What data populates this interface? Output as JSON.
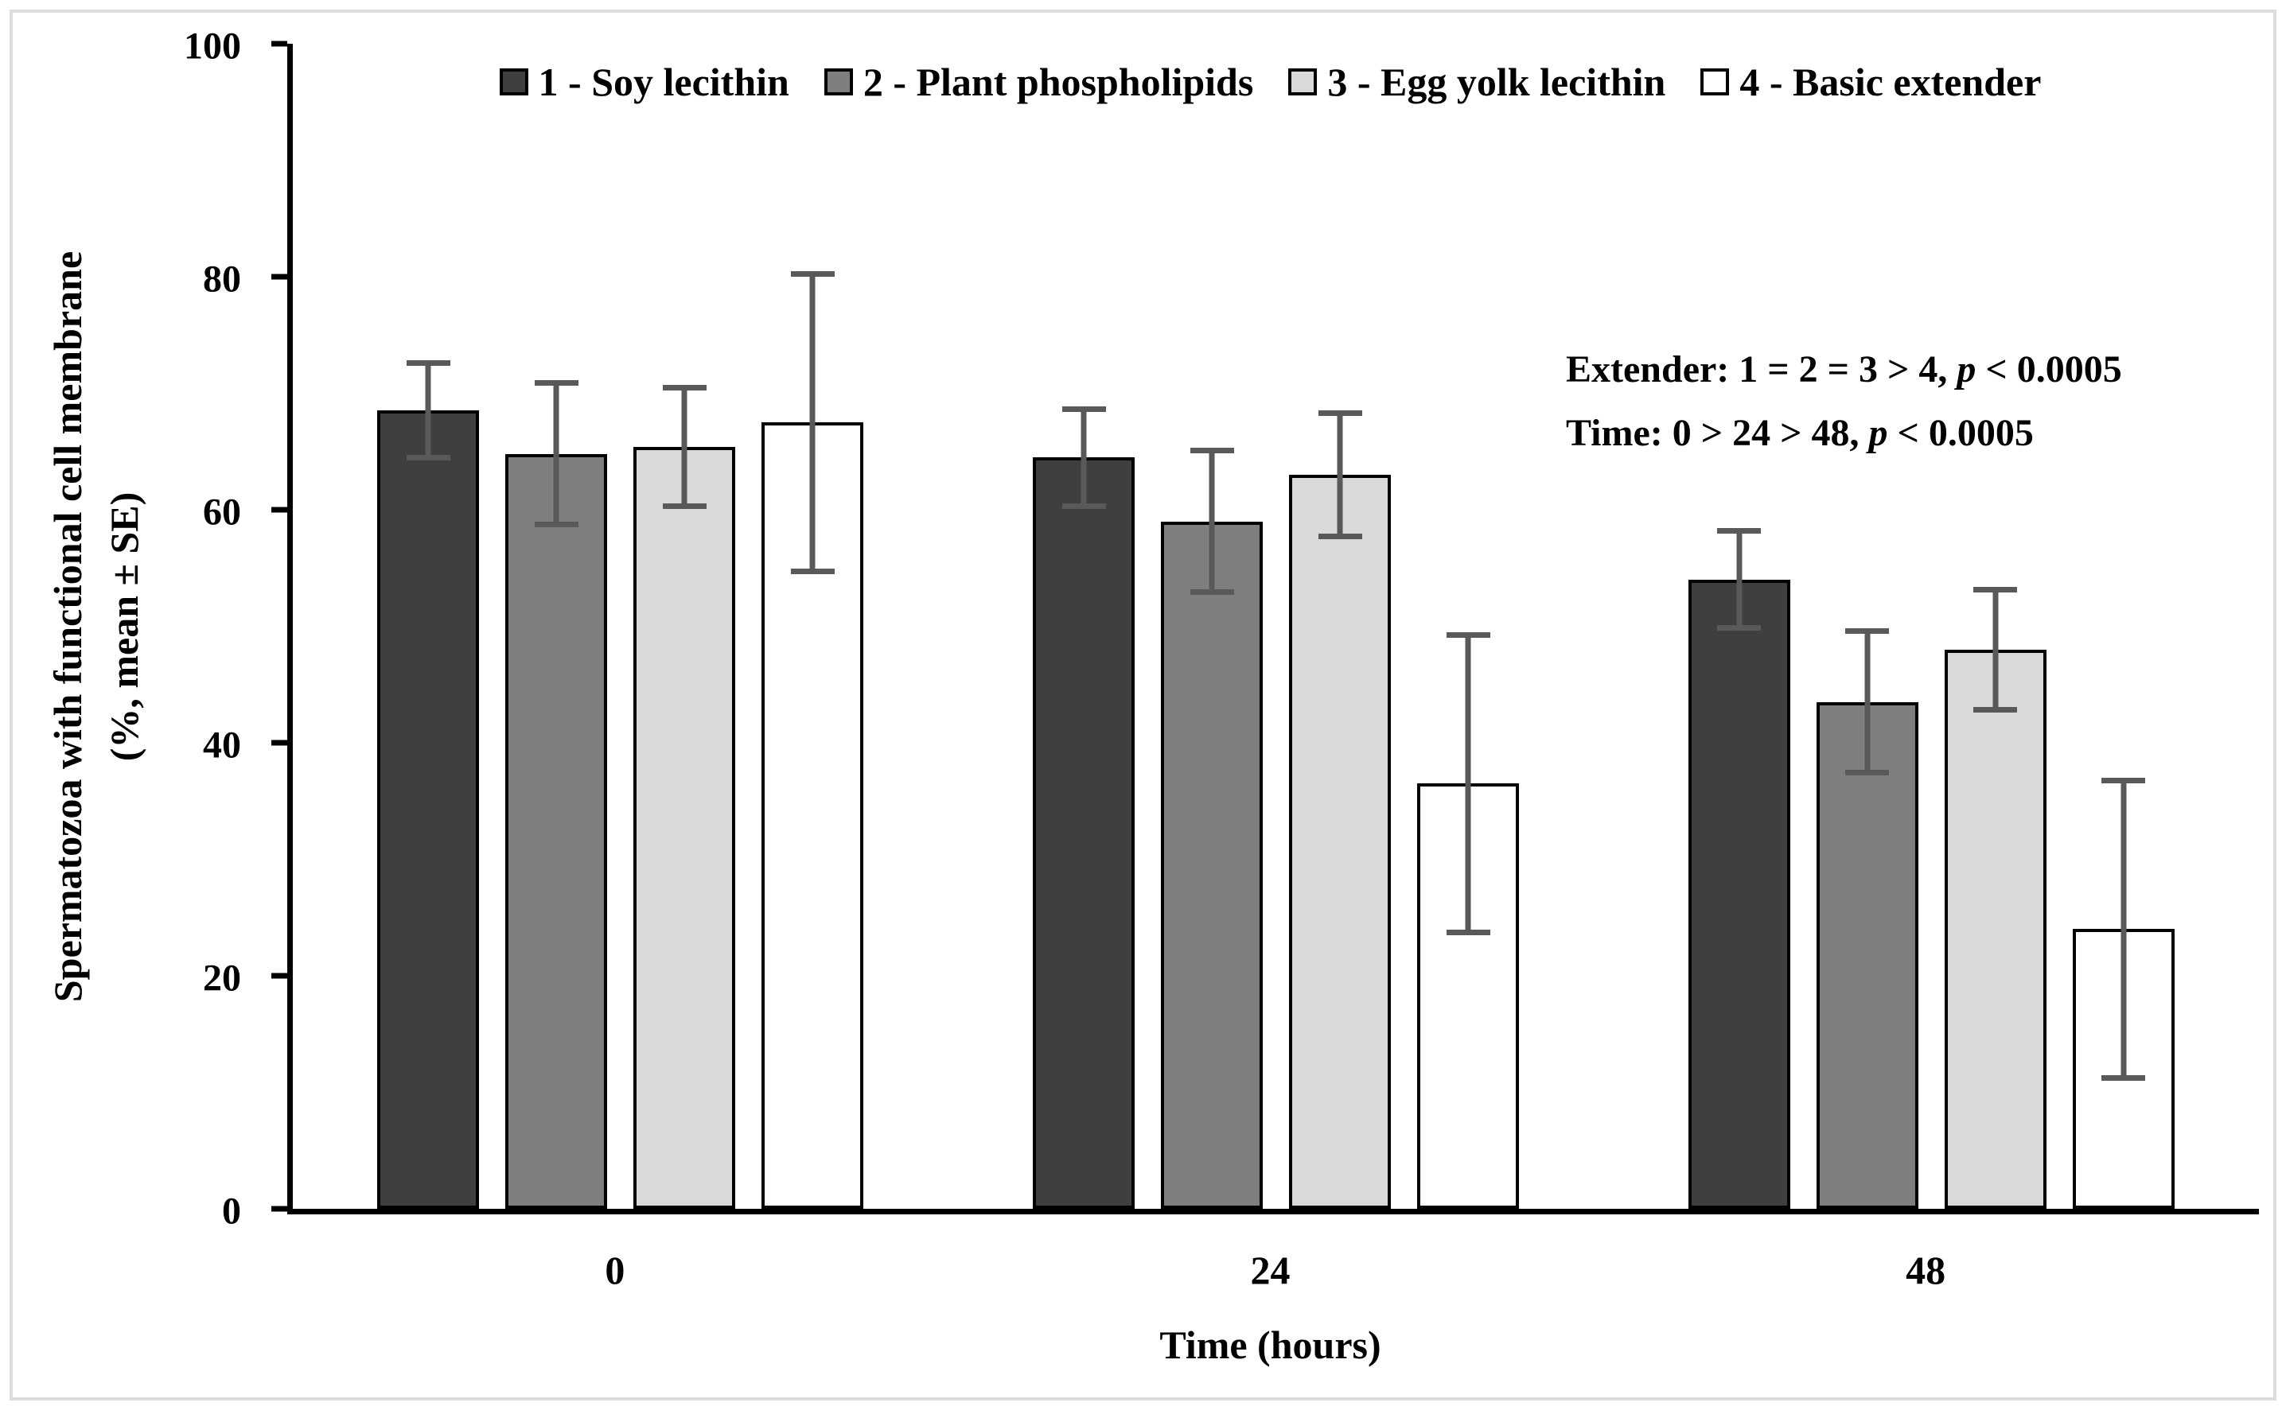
{
  "chart_data": {
    "type": "bar",
    "categories": [
      "0",
      "24",
      "48"
    ],
    "series": [
      {
        "name": "1 - Soy lecithin",
        "fill": "#3f3f3f",
        "values": [
          68.5,
          64.5,
          54.0
        ],
        "se": [
          4.3,
          4.4,
          4.4
        ]
      },
      {
        "name": "2 - Plant phospholipids",
        "fill": "#7f7f7f",
        "values": [
          64.8,
          59.0,
          43.5
        ],
        "se": [
          6.3,
          6.3,
          6.3
        ]
      },
      {
        "name": "3 - Egg yolk lecithin",
        "fill": "#d9d9d9",
        "values": [
          65.4,
          63.0,
          48.0
        ],
        "se": [
          5.3,
          5.5,
          5.4
        ]
      },
      {
        "name": "4 - Basic extender",
        "fill": "#ffffff",
        "values": [
          67.5,
          36.5,
          24.0
        ],
        "se": [
          13.0,
          13.0,
          13.0
        ]
      }
    ],
    "xlabel": "Time (hours)",
    "ylabel_line1": "Spermatozoa with functional cell membrane",
    "ylabel_line2": "(%, mean ± SE)",
    "ylim": [
      0,
      100
    ],
    "ytick_labels": [
      "100",
      "80",
      "60",
      "40",
      "20",
      "0"
    ],
    "grid": false,
    "legend_position": "top",
    "error_bars": "mean ± SE, caps above and below",
    "colors": {
      "bar_border": "#000000",
      "error_bar": "#595959",
      "frame": "#dcdcdc",
      "text": "#000000",
      "background": "#ffffff"
    },
    "annotations": [
      {
        "before": "Extender: 1 = 2 = 3 > 4, ",
        "p": "p",
        "after": " < 0.0005"
      },
      {
        "before": "Time: 0 > 24 > 48, ",
        "p": "p",
        "after": " < 0.0005"
      }
    ]
  }
}
